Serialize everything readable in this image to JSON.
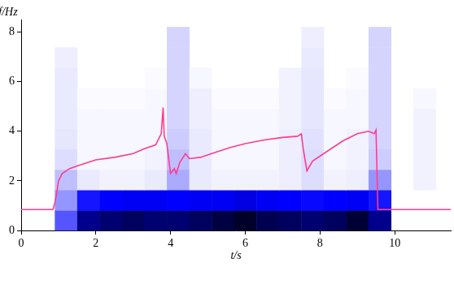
{
  "chart_data": {
    "type": "heatmap",
    "x_label": "t/s",
    "y_label": "f/Hz",
    "xlim": [
      0,
      11.5
    ],
    "ylim": [
      0,
      8.5
    ],
    "xticks": [
      0,
      2,
      4,
      6,
      8,
      10
    ],
    "yticks": [
      0,
      2,
      4,
      6,
      8
    ],
    "grid": false,
    "heatmap": {
      "x_edges": [
        0.9,
        1.5,
        2.1,
        2.7,
        3.3,
        3.9,
        4.5,
        5.1,
        5.7,
        6.3,
        6.9,
        7.5,
        8.1,
        8.7,
        9.3,
        9.9,
        10.5,
        11.1
      ],
      "y_edges": [
        0,
        0.82,
        1.64,
        2.46,
        3.28,
        4.1,
        4.92,
        5.74,
        6.56,
        7.38,
        8.2
      ],
      "cells": [
        [
          0.4,
          0.8,
          0.85,
          0.88,
          0.85,
          0.85,
          0.88,
          0.93,
          0.97,
          0.9,
          0.88,
          0.85,
          0.88,
          0.95,
          0.8,
          0,
          0
        ],
        [
          0.25,
          0.55,
          0.6,
          0.62,
          0.62,
          0.6,
          0.62,
          0.62,
          0.65,
          0.62,
          0.6,
          0.58,
          0.6,
          0.62,
          0.55,
          0,
          0
        ],
        [
          0.15,
          0.05,
          0.03,
          0.03,
          0.05,
          0.2,
          0.05,
          0.03,
          0.03,
          0.03,
          0.04,
          0.08,
          0.03,
          0.04,
          0.25,
          0,
          0.03
        ],
        [
          0.08,
          0.02,
          0.02,
          0.02,
          0.03,
          0.15,
          0.05,
          0.02,
          0.02,
          0.02,
          0.04,
          0.08,
          0.02,
          0.03,
          0.12,
          0,
          0.03
        ],
        [
          0.06,
          0.02,
          0.02,
          0.02,
          0.02,
          0.12,
          0.05,
          0.02,
          0.02,
          0.02,
          0.04,
          0.07,
          0.02,
          0.03,
          0.1,
          0,
          0.03
        ],
        [
          0.05,
          0.02,
          0.02,
          0.02,
          0.02,
          0.1,
          0.04,
          0.02,
          0.02,
          0.02,
          0.03,
          0.06,
          0.02,
          0.02,
          0.1,
          0,
          0.03
        ],
        [
          0.05,
          0.01,
          0.01,
          0.01,
          0.02,
          0.1,
          0.04,
          0.01,
          0.01,
          0.01,
          0.03,
          0.06,
          0.01,
          0.02,
          0.1,
          0,
          0.02
        ],
        [
          0.05,
          0,
          0,
          0,
          0.01,
          0.1,
          0.02,
          0,
          0,
          0,
          0.03,
          0.06,
          0,
          0.01,
          0.1,
          0,
          0
        ],
        [
          0.04,
          0,
          0,
          0,
          0,
          0.1,
          0,
          0,
          0,
          0,
          0,
          0.05,
          0,
          0,
          0.1,
          0,
          0
        ],
        [
          0,
          0,
          0,
          0,
          0,
          0.1,
          0,
          0,
          0,
          0,
          0,
          0.04,
          0,
          0,
          0.1,
          0,
          0
        ]
      ]
    },
    "line": {
      "type": "line",
      "color": "#ff3c8c",
      "x": [
        0,
        0.85,
        0.9,
        0.95,
        1.0,
        1.1,
        1.3,
        1.6,
        2.0,
        2.5,
        3.0,
        3.3,
        3.6,
        3.75,
        3.8,
        3.83,
        3.9,
        4.0,
        4.1,
        4.15,
        4.25,
        4.4,
        4.5,
        4.8,
        5.2,
        5.6,
        6.0,
        6.5,
        7.0,
        7.4,
        7.5,
        7.55,
        7.65,
        7.8,
        8.2,
        8.6,
        9.0,
        9.3,
        9.45,
        9.5,
        9.55,
        11.5
      ],
      "values": [
        0.85,
        0.85,
        1.1,
        1.5,
        2.0,
        2.3,
        2.5,
        2.65,
        2.85,
        2.95,
        3.1,
        3.3,
        3.45,
        3.9,
        4.95,
        3.8,
        3.5,
        2.3,
        2.5,
        2.3,
        2.75,
        3.1,
        2.9,
        2.95,
        3.15,
        3.35,
        3.5,
        3.65,
        3.75,
        3.8,
        3.9,
        3.3,
        2.4,
        2.8,
        3.2,
        3.6,
        3.9,
        4.0,
        3.9,
        4.05,
        0.85,
        0.85
      ]
    }
  }
}
